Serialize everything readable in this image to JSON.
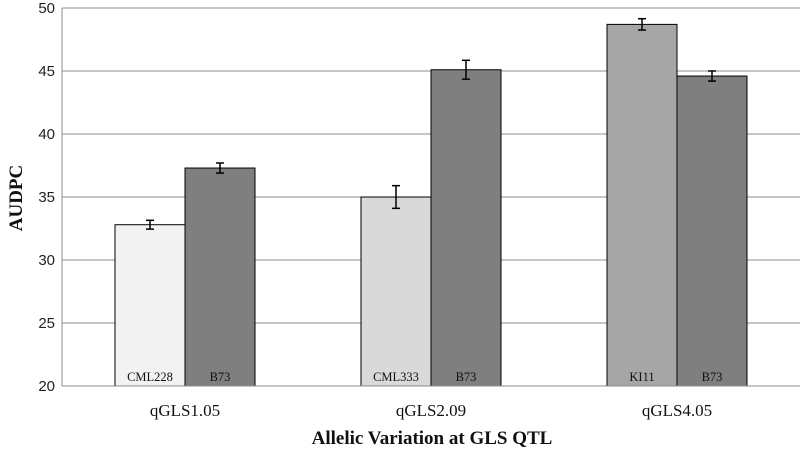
{
  "chart_data": {
    "type": "bar",
    "title": "",
    "xlabel": "Allelic Variation at GLS QTL",
    "ylabel": "AUDPC",
    "ylim": [
      20,
      50
    ],
    "yticks": [
      20,
      25,
      30,
      35,
      40,
      45,
      50
    ],
    "grid": true,
    "legend": "none",
    "groups": [
      {
        "category": "qGLS1.05",
        "bars": [
          {
            "label": "CML228",
            "value": 32.8,
            "error": 0.35,
            "color": "#f2f2f2"
          },
          {
            "label": "B73",
            "value": 37.3,
            "error": 0.4,
            "color": "#7f7f7f"
          }
        ]
      },
      {
        "category": "qGLS2.09",
        "bars": [
          {
            "label": "CML333",
            "value": 35.0,
            "error": 0.9,
            "color": "#d9d9d9"
          },
          {
            "label": "B73",
            "value": 45.1,
            "error": 0.75,
            "color": "#7f7f7f"
          }
        ]
      },
      {
        "category": "qGLS4.05",
        "bars": [
          {
            "label": "KI11",
            "value": 48.7,
            "error": 0.45,
            "color": "#a6a6a6"
          },
          {
            "label": "B73",
            "value": 44.6,
            "error": 0.4,
            "color": "#7f7f7f"
          }
        ]
      }
    ]
  }
}
